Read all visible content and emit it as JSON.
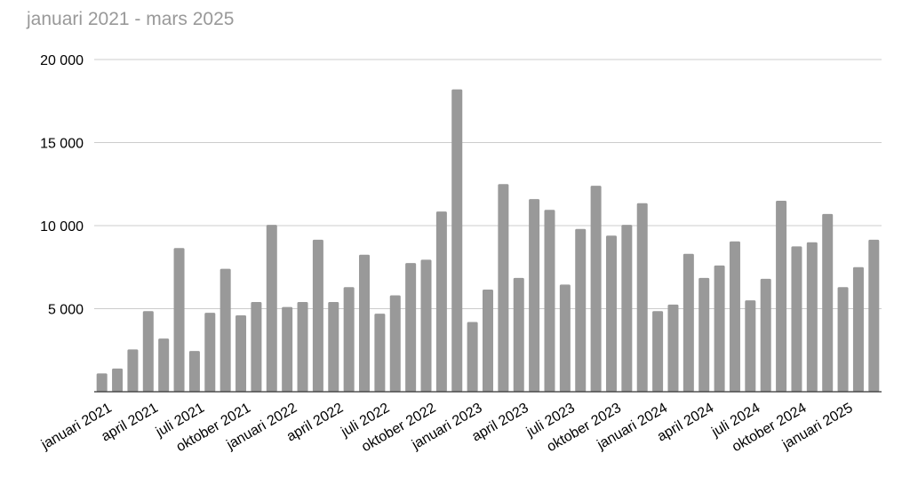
{
  "chart_data": {
    "type": "bar",
    "title": "januari 2021 - mars 2025",
    "categories": [
      "januari 2021",
      null,
      null,
      "april 2021",
      null,
      null,
      "juli 2021",
      null,
      null,
      "oktober 2021",
      null,
      null,
      "januari 2022",
      null,
      null,
      "april 2022",
      null,
      null,
      "juli 2022",
      null,
      null,
      "oktober 2022",
      null,
      null,
      "januari 2023",
      null,
      null,
      "april 2023",
      null,
      null,
      "juli 2023",
      null,
      null,
      "oktober 2023",
      null,
      null,
      "januari 2024",
      null,
      null,
      "april 2024",
      null,
      null,
      "juli 2024",
      null,
      null,
      "oktober 2024",
      null,
      null,
      "januari 2025",
      null,
      null
    ],
    "values": [
      1100,
      1400,
      2550,
      4850,
      3200,
      8650,
      2450,
      4750,
      7400,
      4600,
      5400,
      10050,
      5100,
      5400,
      9150,
      5400,
      6300,
      8250,
      4700,
      5800,
      7750,
      7950,
      10850,
      18200,
      4200,
      6150,
      12500,
      6850,
      11600,
      10950,
      6450,
      9800,
      12400,
      9400,
      10050,
      11350,
      4850,
      5250,
      8300,
      6850,
      7600,
      9050,
      5500,
      6800,
      11500,
      8750,
      9000,
      10700,
      6300,
      7500,
      9150
    ],
    "color": "#999999",
    "ylim": [
      0,
      20000
    ],
    "yticks": [
      {
        "value": 5000,
        "label": "5 000"
      },
      {
        "value": 10000,
        "label": "10 000"
      },
      {
        "value": 15000,
        "label": "15 000"
      },
      {
        "value": 20000,
        "label": "20 000"
      }
    ],
    "grid": true
  }
}
